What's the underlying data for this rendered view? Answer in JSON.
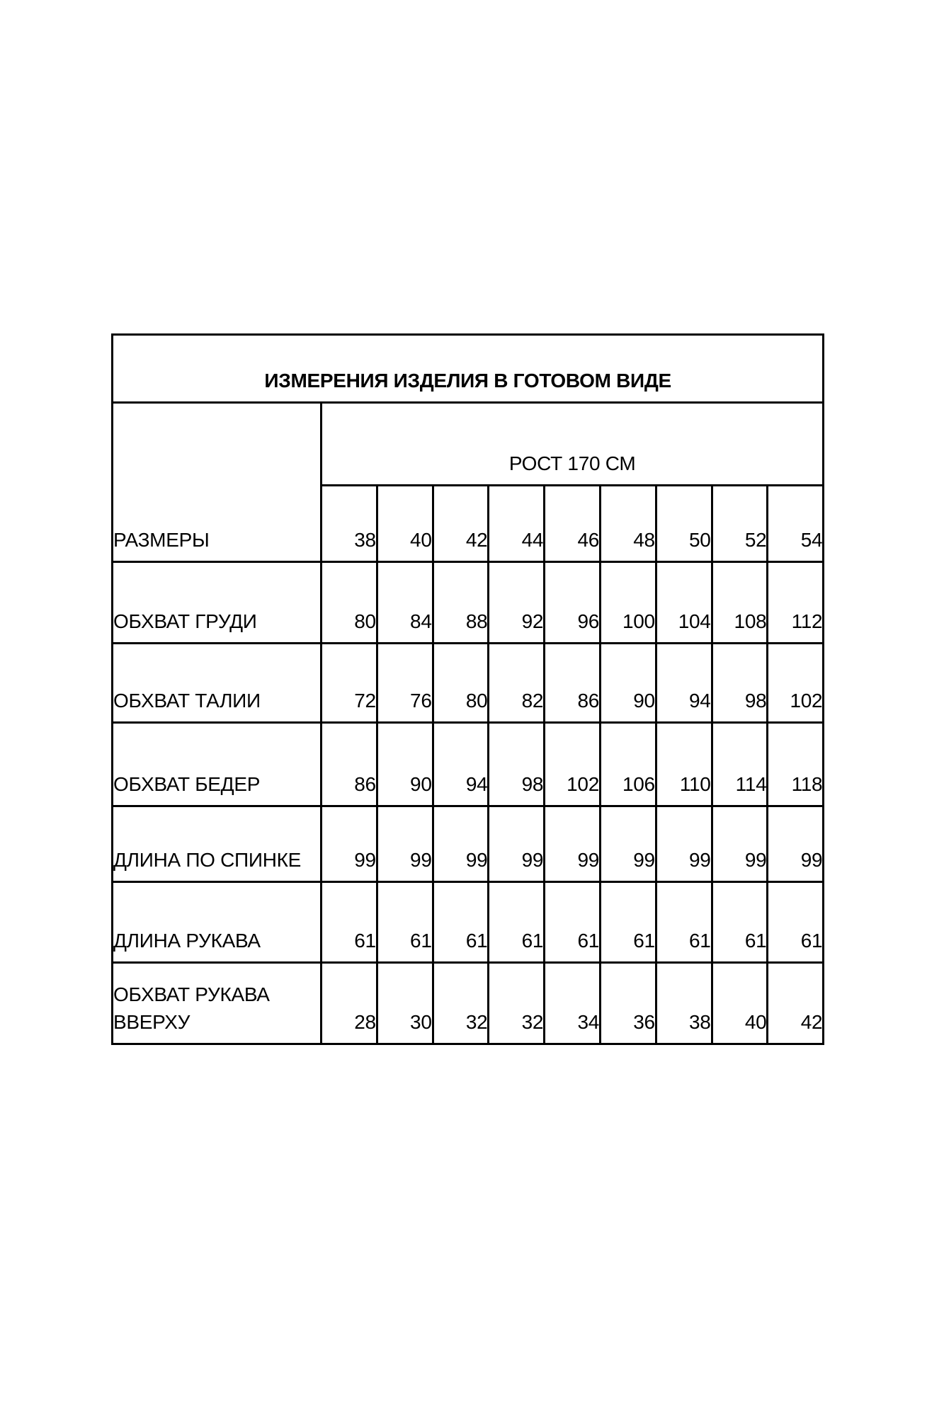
{
  "title": "ИЗМЕРЕНИЯ ИЗДЕЛИЯ В ГОТОВОМ ВИДЕ",
  "header": {
    "height_label": "РОСТ 170 СМ"
  },
  "sizes": {
    "label": "РАЗМЕРЫ",
    "values": [
      "38",
      "40",
      "42",
      "44",
      "46",
      "48",
      "50",
      "52",
      "54"
    ]
  },
  "rows": [
    {
      "label": "ОБХВАТ ГРУДИ",
      "values": [
        "80",
        "84",
        "88",
        "92",
        "96",
        "100",
        "104",
        "108",
        "112"
      ]
    },
    {
      "label": "ОБХВАТ ТАЛИИ",
      "values": [
        "72",
        "76",
        "80",
        "82",
        "86",
        "90",
        "94",
        "98",
        "102"
      ]
    },
    {
      "label": "ОБХВАТ БЕДЕР",
      "values": [
        "86",
        "90",
        "94",
        "98",
        "102",
        "106",
        "110",
        "114",
        "118"
      ]
    },
    {
      "label": "ДЛИНА ПО СПИНКЕ",
      "values": [
        "99",
        "99",
        "99",
        "99",
        "99",
        "99",
        "99",
        "99",
        "99"
      ]
    },
    {
      "label": "ДЛИНА РУКАВА",
      "values": [
        "61",
        "61",
        "61",
        "61",
        "61",
        "61",
        "61",
        "61",
        "61"
      ]
    },
    {
      "label": "ОБХВАТ РУКАВА ВВЕРХУ",
      "values": [
        "28",
        "30",
        "32",
        "32",
        "34",
        "36",
        "38",
        "40",
        "42"
      ]
    }
  ],
  "colors": {
    "border": "#000000",
    "text": "#000000",
    "background": "#ffffff"
  },
  "chart_data": {
    "type": "table",
    "title": "ИЗМЕРЕНИЯ ИЗДЕЛИЯ В ГОТОВОМ ВИДЕ",
    "column_group_header": "РОСТ 170 СМ",
    "categories": [
      38,
      40,
      42,
      44,
      46,
      48,
      50,
      52,
      54
    ],
    "series": [
      {
        "name": "РАЗМЕРЫ",
        "values": [
          38,
          40,
          42,
          44,
          46,
          48,
          50,
          52,
          54
        ]
      },
      {
        "name": "ОБХВАТ ГРУДИ",
        "values": [
          80,
          84,
          88,
          92,
          96,
          100,
          104,
          108,
          112
        ]
      },
      {
        "name": "ОБХВАТ ТАЛИИ",
        "values": [
          72,
          76,
          80,
          82,
          86,
          90,
          94,
          98,
          102
        ]
      },
      {
        "name": "ОБХВАТ БЕДЕР",
        "values": [
          86,
          90,
          94,
          98,
          102,
          106,
          110,
          114,
          118
        ]
      },
      {
        "name": "ДЛИНА ПО СПИНКЕ",
        "values": [
          99,
          99,
          99,
          99,
          99,
          99,
          99,
          99,
          99
        ]
      },
      {
        "name": "ДЛИНА РУКАВА",
        "values": [
          61,
          61,
          61,
          61,
          61,
          61,
          61,
          61,
          61
        ]
      },
      {
        "name": "ОБХВАТ РУКАВА ВВЕРХУ",
        "values": [
          28,
          30,
          32,
          32,
          34,
          36,
          38,
          40,
          42
        ]
      }
    ]
  }
}
